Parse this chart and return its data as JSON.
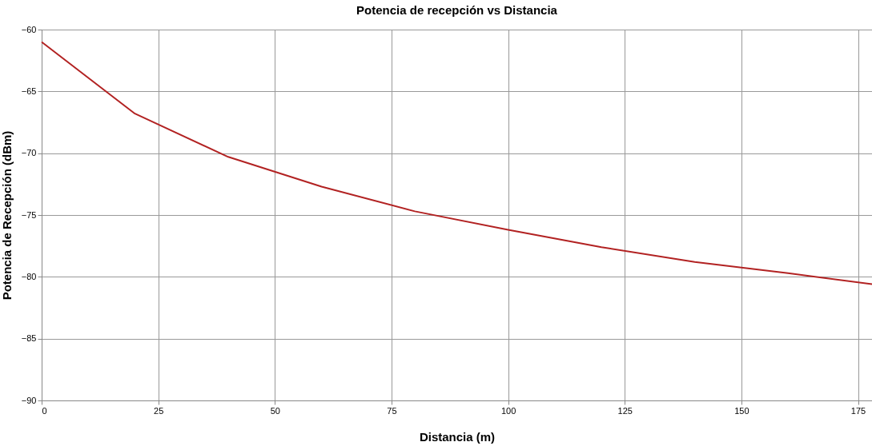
{
  "chart_data": {
    "type": "line",
    "title": "Potencia de recepción vs Distancia",
    "xlabel": "Distancia (m)",
    "ylabel": "Potencia de Recepción (dBm)",
    "x": [
      0,
      20,
      40,
      60,
      80,
      100,
      120,
      140,
      160,
      178
    ],
    "series": [
      {
        "color": "#b22222",
        "values": [
          -61,
          -66.8,
          -70.3,
          -72.7,
          -74.7,
          -76.2,
          -77.6,
          -78.8,
          -79.7,
          -80.6
        ]
      }
    ],
    "xlim": [
      0,
      178
    ],
    "xticks": [
      0,
      25,
      50,
      75,
      100,
      125,
      150,
      175
    ],
    "ylim": [
      -90,
      -60
    ],
    "yticks": [
      -90,
      -85,
      -80,
      -75,
      -70,
      -65,
      -60
    ],
    "grid": true,
    "legend": false,
    "marker": "none",
    "line_style": "solid"
  }
}
